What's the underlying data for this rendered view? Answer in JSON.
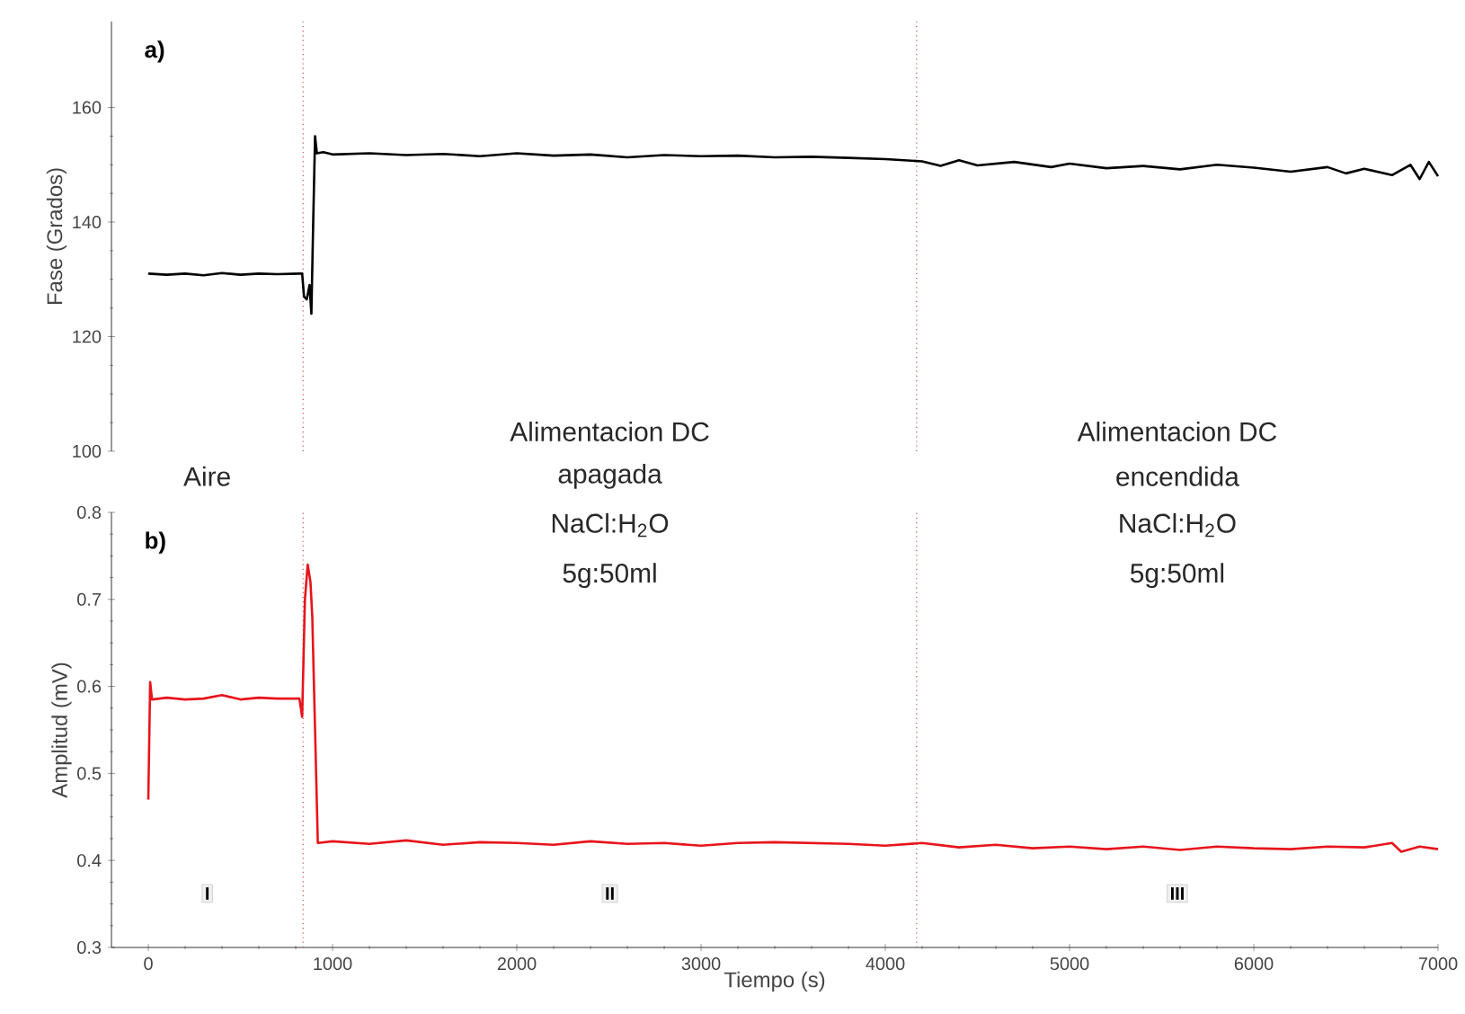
{
  "chart_data": [
    {
      "type": "line",
      "ylabel": "Fase (Grados)",
      "xlim": [
        -200,
        7000
      ],
      "ylim": [
        100,
        175
      ],
      "yticks": [
        100,
        120,
        140,
        160
      ],
      "tick_labels": "y",
      "line_style": "solid",
      "ref_lines": [
        {
          "axis": "x",
          "value": 840,
          "color": "#c0504d",
          "line_style": "dotted"
        },
        {
          "axis": "x",
          "value": 4170,
          "color": "#c0504d",
          "line_style": "dotted"
        }
      ],
      "annotations": [
        "a)"
      ],
      "series": [
        {
          "color": "#000000",
          "x": [
            0,
            100,
            200,
            300,
            400,
            500,
            600,
            700,
            820,
            835,
            845,
            860,
            875,
            885,
            895,
            905,
            915,
            950,
            1000,
            1200,
            1400,
            1600,
            1800,
            2000,
            2200,
            2400,
            2600,
            2800,
            3000,
            3200,
            3400,
            3600,
            3800,
            4000,
            4200,
            4300,
            4400,
            4500,
            4700,
            4900,
            5000,
            5200,
            5400,
            5600,
            5800,
            6000,
            6200,
            6400,
            6500,
            6600,
            6750,
            6850,
            6900,
            6950,
            7000
          ],
          "values": [
            131,
            130.8,
            131,
            130.7,
            131.1,
            130.8,
            131,
            130.9,
            131,
            131,
            127,
            126.5,
            129,
            124,
            140,
            155,
            152,
            152.2,
            151.8,
            152,
            151.7,
            151.9,
            151.5,
            152,
            151.6,
            151.8,
            151.3,
            151.7,
            151.5,
            151.6,
            151.3,
            151.4,
            151.2,
            151,
            150.6,
            149.8,
            150.8,
            149.9,
            150.5,
            149.6,
            150.2,
            149.4,
            149.8,
            149.2,
            150,
            149.5,
            148.8,
            149.6,
            148.5,
            149.3,
            148.2,
            150,
            147.5,
            150.5,
            148
          ]
        }
      ]
    },
    {
      "type": "line",
      "xlabel": "Tiempo (s)",
      "ylabel": "Amplitud (mV)",
      "xlim": [
        -200,
        7000
      ],
      "xticks": [
        0,
        1000,
        2000,
        3000,
        4000,
        5000,
        6000,
        7000
      ],
      "ylim": [
        0.3,
        0.8
      ],
      "yticks": [
        0.3,
        0.4,
        0.5,
        0.6,
        0.7,
        0.8
      ],
      "line_style": "solid",
      "ref_lines": [
        {
          "axis": "x",
          "value": 840,
          "color": "#c0504d",
          "line_style": "dotted"
        },
        {
          "axis": "x",
          "value": 4170,
          "color": "#c0504d",
          "line_style": "dotted"
        }
      ],
      "annotations": [
        "b)",
        "Aire",
        "Alimentacion DC",
        "apagada",
        "NaCl:H$_{2}$O",
        "5g:50ml",
        "Alimentacion DC",
        "encendida",
        "NaCl:H$_{2}$O",
        "5g:50ml",
        "I",
        "II",
        "III"
      ],
      "series": [
        {
          "color": "#e8141b",
          "x": [
            0,
            10,
            20,
            100,
            200,
            300,
            400,
            500,
            600,
            700,
            820,
            835,
            850,
            865,
            880,
            890,
            905,
            920,
            1000,
            1200,
            1400,
            1600,
            1800,
            2000,
            2200,
            2400,
            2600,
            2800,
            3000,
            3200,
            3400,
            3600,
            3800,
            4000,
            4200,
            4400,
            4600,
            4800,
            5000,
            5200,
            5400,
            5600,
            5800,
            6000,
            6200,
            6400,
            6600,
            6750,
            6800,
            6900,
            7000
          ],
          "values": [
            0.47,
            0.605,
            0.585,
            0.587,
            0.585,
            0.586,
            0.59,
            0.585,
            0.587,
            0.586,
            0.586,
            0.565,
            0.7,
            0.74,
            0.72,
            0.68,
            0.55,
            0.42,
            0.422,
            0.419,
            0.423,
            0.418,
            0.421,
            0.42,
            0.418,
            0.422,
            0.419,
            0.42,
            0.417,
            0.42,
            0.421,
            0.42,
            0.419,
            0.417,
            0.42,
            0.415,
            0.418,
            0.414,
            0.416,
            0.413,
            0.416,
            0.412,
            0.416,
            0.414,
            0.413,
            0.416,
            0.415,
            0.42,
            0.41,
            0.416,
            0.413
          ]
        }
      ]
    }
  ]
}
